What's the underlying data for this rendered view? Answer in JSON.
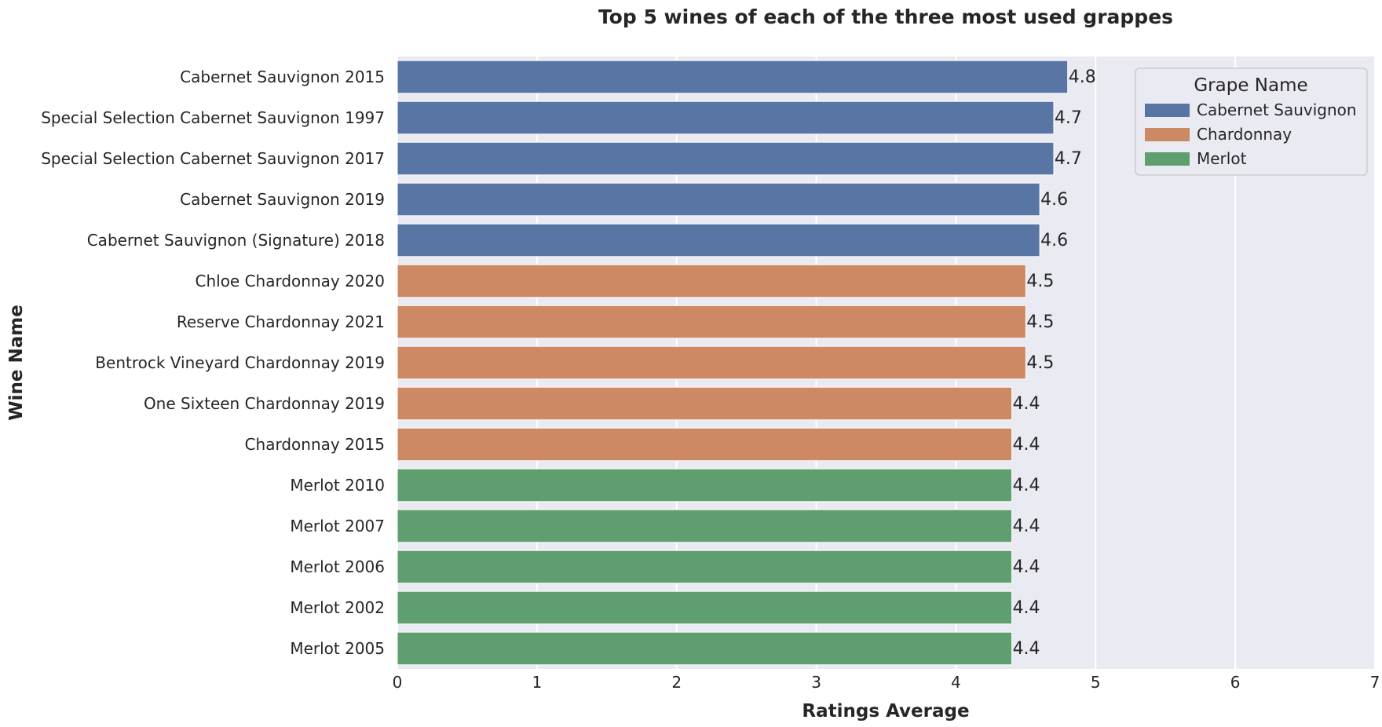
{
  "chart_data": {
    "type": "bar",
    "orientation": "horizontal",
    "title": "Top 5 wines of each of the three most used grappes",
    "xlabel": "Ratings Average",
    "ylabel": "Wine Name",
    "xlim": [
      0,
      7
    ],
    "x_ticks": [
      0,
      1,
      2,
      3,
      4,
      5,
      6,
      7
    ],
    "grid": true,
    "legend": {
      "title": "Grape Name",
      "placement": "top-right",
      "entries": [
        {
          "name": "Cabernet Sauvignon",
          "color": "#5875a4"
        },
        {
          "name": "Chardonnay",
          "color": "#cc8963"
        },
        {
          "name": "Merlot",
          "color": "#5f9e6e"
        }
      ]
    },
    "categories": [
      "Cabernet Sauvignon 2015",
      "Special Selection Cabernet Sauvignon 1997",
      "Special Selection Cabernet Sauvignon 2017",
      "Cabernet Sauvignon 2019",
      "Cabernet Sauvignon (Signature) 2018",
      "Chloe Chardonnay 2020",
      "Reserve Chardonnay 2021",
      "Bentrock Vineyard Chardonnay 2019",
      "One Sixteen Chardonnay 2019",
      "Chardonnay 2015",
      "Merlot 2010",
      "Merlot 2007",
      "Merlot 2006",
      "Merlot 2002",
      "Merlot 2005"
    ],
    "values": [
      4.8,
      4.7,
      4.7,
      4.6,
      4.6,
      4.5,
      4.5,
      4.5,
      4.4,
      4.4,
      4.4,
      4.4,
      4.4,
      4.4,
      4.4
    ],
    "groups": [
      "Cabernet Sauvignon",
      "Cabernet Sauvignon",
      "Cabernet Sauvignon",
      "Cabernet Sauvignon",
      "Cabernet Sauvignon",
      "Chardonnay",
      "Chardonnay",
      "Chardonnay",
      "Chardonnay",
      "Chardonnay",
      "Merlot",
      "Merlot",
      "Merlot",
      "Merlot",
      "Merlot"
    ],
    "data_labels": [
      "4.8",
      "4.7",
      "4.7",
      "4.6",
      "4.6",
      "4.5",
      "4.5",
      "4.5",
      "4.4",
      "4.4",
      "4.4",
      "4.4",
      "4.4",
      "4.4",
      "4.4"
    ]
  }
}
